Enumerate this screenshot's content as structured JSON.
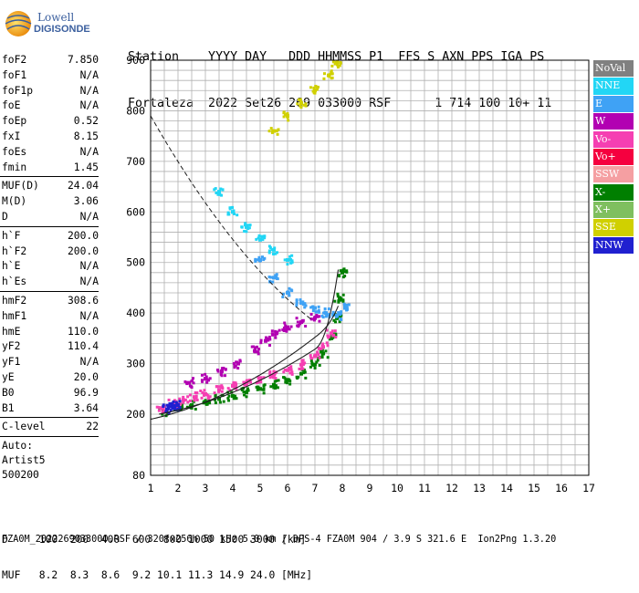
{
  "logo": {
    "line1": "Lowell",
    "line2": "DIGISONDE"
  },
  "header": {
    "line1": "Station    YYYY DAY   DDD HHMMSS P1  FFS S AXN PPS IGA PS",
    "line2": "Fortaleza  2022 Set26 269 033000 RSF      1 714 100 10+ 11"
  },
  "params": {
    "group1": [
      {
        "label": "foF2",
        "value": "7.850"
      },
      {
        "label": "foF1",
        "value": "N/A"
      },
      {
        "label": "foF1p",
        "value": "N/A"
      },
      {
        "label": "foE",
        "value": "N/A"
      },
      {
        "label": "foEp",
        "value": "0.52"
      },
      {
        "label": "fxI",
        "value": "8.15"
      },
      {
        "label": "foEs",
        "value": "N/A"
      },
      {
        "label": "fmin",
        "value": "1.45"
      }
    ],
    "group2": [
      {
        "label": "MUF(D)",
        "value": "24.04"
      },
      {
        "label": "M(D)",
        "value": "3.06"
      },
      {
        "label": "D",
        "value": "N/A"
      }
    ],
    "group3": [
      {
        "label": "h`F",
        "value": "200.0"
      },
      {
        "label": "h`F2",
        "value": "200.0"
      },
      {
        "label": "h`E",
        "value": "N/A"
      },
      {
        "label": "h`Es",
        "value": "N/A"
      }
    ],
    "group4": [
      {
        "label": "hmF2",
        "value": "308.6"
      },
      {
        "label": "hmF1",
        "value": "N/A"
      },
      {
        "label": "hmE",
        "value": "110.0"
      },
      {
        "label": "yF2",
        "value": "110.4"
      },
      {
        "label": "yF1",
        "value": "N/A"
      },
      {
        "label": "yE",
        "value": "20.0"
      },
      {
        "label": "B0",
        "value": "96.9"
      },
      {
        "label": "B1",
        "value": "3.64"
      }
    ],
    "group5": [
      {
        "label": "C-level",
        "value": "22"
      }
    ],
    "auto": [
      "Auto:",
      "Artist5",
      "500200"
    ]
  },
  "legend": [
    {
      "label": "NoVal",
      "color": "#808080"
    },
    {
      "label": "NNE",
      "color": "#22d6f5"
    },
    {
      "label": "E",
      "color": "#3fa2f5"
    },
    {
      "label": "W",
      "color": "#b200b2"
    },
    {
      "label": "Vo-",
      "color": "#f53fb2"
    },
    {
      "label": "Vo+",
      "color": "#f5003f"
    },
    {
      "label": "SSW",
      "color": "#f59fa2"
    },
    {
      "label": "X-",
      "color": "#007f00"
    },
    {
      "label": "X+",
      "color": "#7fbf5f"
    },
    {
      "label": "SSE",
      "color": "#d0d000"
    },
    {
      "label": "NNW",
      "color": "#2020d0"
    }
  ],
  "muf_table": {
    "line1": "D     100  200  400  600  800 1000 1500 3000 [km]",
    "line2": "MUF   8.2  8.3  8.6  9.2 10.1 11.3 14.9 24.0 [MHz]"
  },
  "footer": "FZA0M_2022269033000.RSF / 320fx256h 50 kHz 5.0 km / DPS-4 FZA0M 904 / 3.9 S 321.6 E  Ion2Png 1.3.20",
  "chart_data": {
    "type": "scatter",
    "xlim": [
      1,
      17
    ],
    "ylim": [
      80,
      900
    ],
    "xticks": [
      "1",
      "2",
      "3",
      "4",
      "5",
      "6",
      "7",
      "8",
      "9",
      "10",
      "11",
      "12",
      "13",
      "14",
      "15",
      "16",
      "17"
    ],
    "yticks": [
      "80",
      "200",
      "300",
      "400",
      "500",
      "600",
      "700",
      "800",
      "900"
    ],
    "grid": true,
    "series": [
      {
        "name": "X-",
        "color": "#007f00",
        "x": [
          1.5,
          2.0,
          2.5,
          3.0,
          3.5,
          4.0,
          4.5,
          5.0,
          5.5,
          6.0,
          6.5,
          7.0,
          7.3,
          7.6,
          7.8,
          7.9,
          8.0
        ],
        "y": [
          205,
          212,
          218,
          224,
          230,
          236,
          243,
          250,
          258,
          268,
          280,
          298,
          320,
          350,
          390,
          430,
          480
        ]
      },
      {
        "name": "Vo-",
        "color": "#f53fb2",
        "x": [
          1.4,
          1.8,
          2.2,
          2.6,
          3.0,
          3.5,
          4.0,
          4.5,
          5.0,
          5.5,
          6.0,
          6.5,
          7.0,
          7.3,
          7.6
        ],
        "y": [
          212,
          220,
          228,
          234,
          240,
          248,
          256,
          262,
          270,
          278,
          287,
          298,
          315,
          333,
          360
        ]
      },
      {
        "name": "W",
        "color": "#b200b2",
        "x": [
          2.4,
          3.0,
          3.6,
          4.2,
          4.8,
          5.2,
          5.6,
          6.0,
          6.5,
          7.0
        ],
        "y": [
          262,
          270,
          285,
          300,
          325,
          345,
          360,
          372,
          382,
          390
        ]
      },
      {
        "name": "E",
        "color": "#3fa2f5",
        "x": [
          5.0,
          5.5,
          6.0,
          6.5,
          7.0,
          7.4,
          7.8,
          8.1
        ],
        "y": [
          505,
          470,
          440,
          420,
          410,
          400,
          395,
          410
        ]
      },
      {
        "name": "NNE",
        "color": "#22d6f5",
        "x": [
          3.5,
          4.0,
          4.5,
          5.0,
          5.5,
          6.0
        ],
        "y": [
          640,
          600,
          570,
          545,
          525,
          505
        ]
      },
      {
        "name": "SSE",
        "color": "#d0d000",
        "x": [
          5.5,
          6.0,
          6.5,
          7.0,
          7.5,
          7.8
        ],
        "y": [
          760,
          790,
          815,
          840,
          870,
          895
        ]
      },
      {
        "name": "NNW",
        "color": "#2020d0",
        "x": [
          1.6,
          1.8,
          2.0
        ],
        "y": [
          210,
          215,
          218
        ]
      }
    ]
  }
}
